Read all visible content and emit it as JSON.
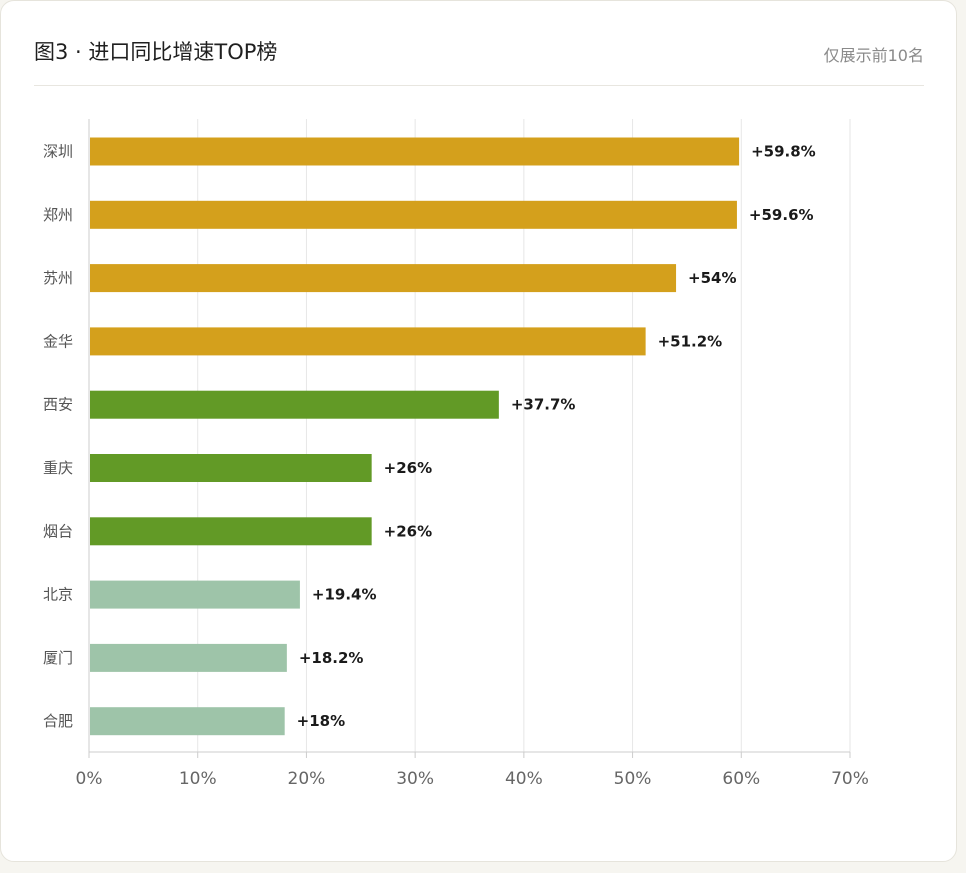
{
  "card": {
    "title": "图3 · 进口同比增速TOP榜",
    "note": "仅展示前10名"
  },
  "chart_data": {
    "type": "bar",
    "orientation": "horizontal",
    "title": "图3 · 进口同比增速TOP榜",
    "xlabel": "",
    "ylabel": "",
    "grid": true,
    "xlim": [
      0,
      70
    ],
    "xticks": [
      0,
      10,
      20,
      30,
      40,
      50,
      60,
      70
    ],
    "tick_suffix": "%",
    "categories": [
      "深圳",
      "郑州",
      "苏州",
      "金华",
      "西安",
      "重庆",
      "烟台",
      "北京",
      "厦门",
      "合肥"
    ],
    "values": [
      59.8,
      59.6,
      54,
      51.2,
      37.7,
      26,
      26,
      19.4,
      18.2,
      18
    ],
    "value_labels": [
      "+59.8%",
      "+59.6%",
      "+54%",
      "+51.2%",
      "+37.7%",
      "+26%",
      "+26%",
      "+19.4%",
      "+18.2%",
      "+18%"
    ],
    "bar_colors": [
      "#d4a01c",
      "#d4a01c",
      "#d4a01c",
      "#d4a01c",
      "#629a26",
      "#629a26",
      "#629a26",
      "#9ec4a9",
      "#9ec4a9",
      "#9ec4a9"
    ],
    "gridline_color": "#e6e6e6",
    "axis_color": "#cccccc"
  }
}
